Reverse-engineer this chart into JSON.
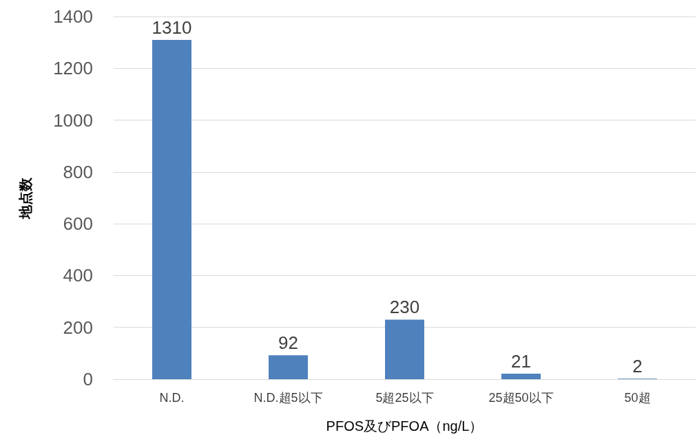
{
  "chart_data": {
    "type": "bar",
    "xlabel": "PFOS及びPFOA（ng/L）",
    "ylabel": "地点数",
    "categories": [
      "N.D.",
      "N.D.超5以下",
      "5超25以下",
      "25超50以下",
      "50超"
    ],
    "values": [
      1310,
      92,
      230,
      21,
      2
    ],
    "color": "#4f81bd",
    "ylim": [
      0,
      1400
    ],
    "yticks": [
      0,
      200,
      400,
      600,
      800,
      1000,
      1200,
      1400
    ],
    "grid": "y",
    "data_labels": true
  }
}
